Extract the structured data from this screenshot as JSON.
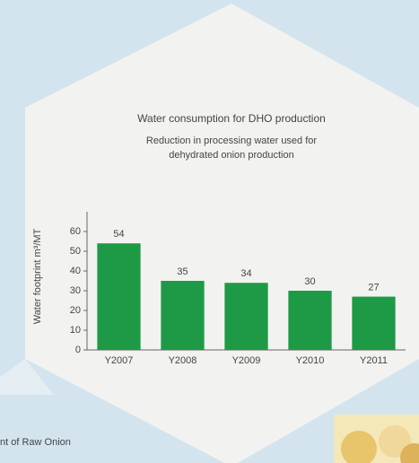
{
  "chart_data": {
    "type": "bar",
    "title": "Water consumption for DHO production",
    "subtitle": [
      "Reduction in processing water used for",
      "dehydrated onion production"
    ],
    "ylabel": "Water footprint m³/MT",
    "categories": [
      "Y2007",
      "Y2008",
      "Y2009",
      "Y2010",
      "Y2011"
    ],
    "values": [
      54,
      35,
      34,
      30,
      27
    ],
    "color": "#1e9a46",
    "ylim": [
      0,
      70
    ],
    "yticks": [
      0,
      10,
      20,
      30,
      40,
      50,
      60
    ],
    "footer_text": "nt of Raw Onion"
  }
}
